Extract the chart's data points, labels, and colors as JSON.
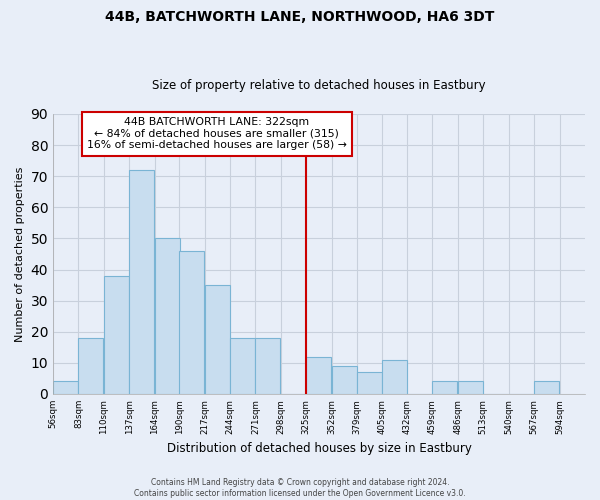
{
  "title": "44B, BATCHWORTH LANE, NORTHWOOD, HA6 3DT",
  "subtitle": "Size of property relative to detached houses in Eastbury",
  "xlabel": "Distribution of detached houses by size in Eastbury",
  "ylabel": "Number of detached properties",
  "bar_color": "#c8ddef",
  "bar_edge_color": "#7ab4d4",
  "bins": [
    56,
    83,
    110,
    137,
    164,
    190,
    217,
    244,
    271,
    298,
    325,
    352,
    379,
    405,
    432,
    459,
    486,
    513,
    540,
    567,
    594
  ],
  "bin_labels": [
    "56sqm",
    "83sqm",
    "110sqm",
    "137sqm",
    "164sqm",
    "190sqm",
    "217sqm",
    "244sqm",
    "271sqm",
    "298sqm",
    "325sqm",
    "352sqm",
    "379sqm",
    "405sqm",
    "432sqm",
    "459sqm",
    "486sqm",
    "513sqm",
    "540sqm",
    "567sqm",
    "594sqm"
  ],
  "counts": [
    4,
    18,
    38,
    72,
    50,
    46,
    35,
    18,
    18,
    0,
    12,
    9,
    7,
    11,
    0,
    4,
    4,
    0,
    0,
    4
  ],
  "ylim": [
    0,
    90
  ],
  "yticks": [
    0,
    10,
    20,
    30,
    40,
    50,
    60,
    70,
    80,
    90
  ],
  "vline_x": 325,
  "vline_color": "#cc0000",
  "annotation_title": "44B BATCHWORTH LANE: 322sqm",
  "annotation_line1": "← 84% of detached houses are smaller (315)",
  "annotation_line2": "16% of semi-detached houses are larger (58) →",
  "footer_line1": "Contains HM Land Registry data © Crown copyright and database right 2024.",
  "footer_line2": "Contains public sector information licensed under the Open Government Licence v3.0.",
  "background_color": "#e8eef8",
  "grid_color": "#c8d0dc",
  "fig_width": 6.0,
  "fig_height": 5.0
}
